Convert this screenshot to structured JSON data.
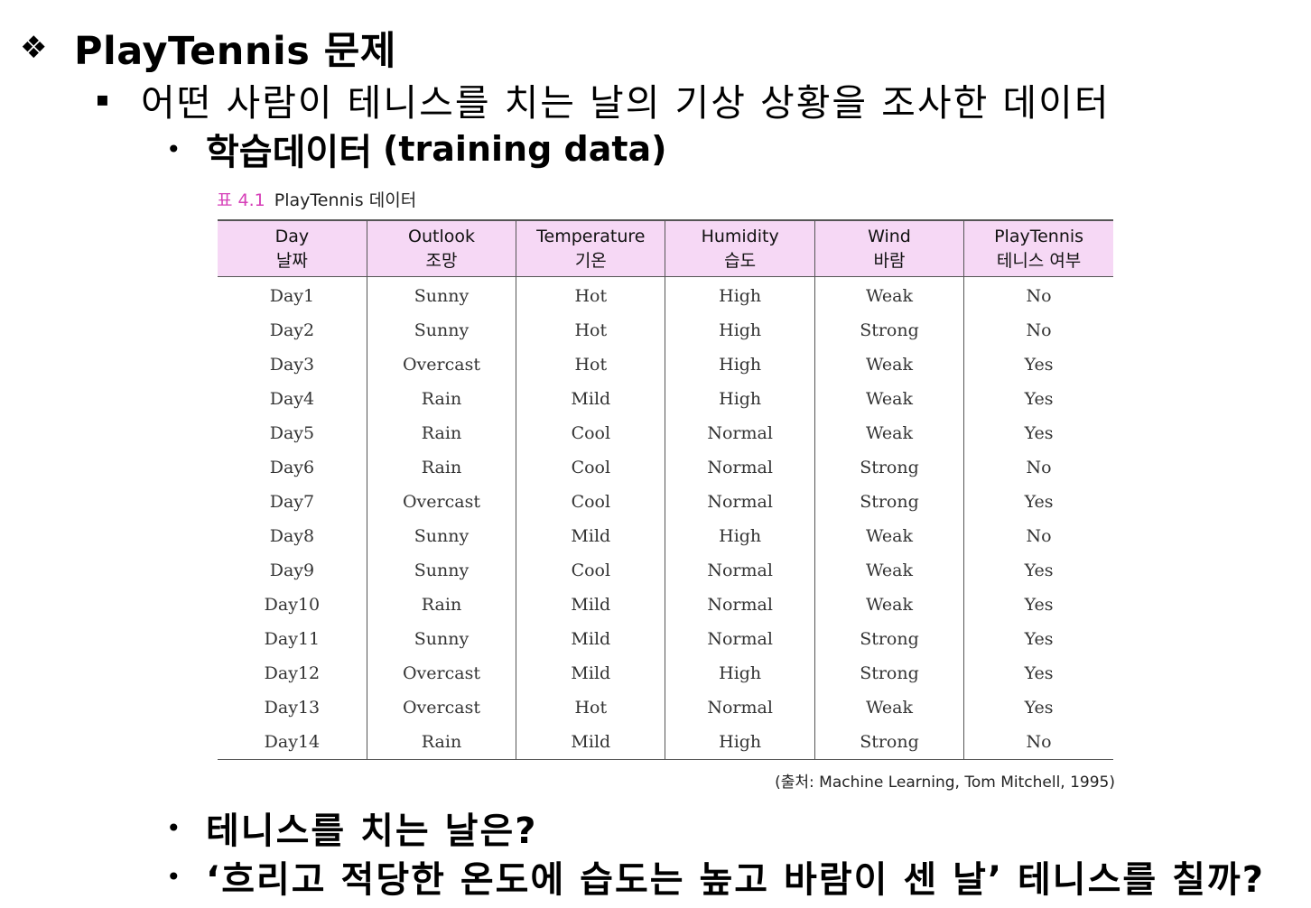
{
  "title": {
    "bullet": "❖",
    "text": "PlayTennis 문제"
  },
  "subtitle": {
    "bullet": "▪",
    "text": "어떤 사람이 테니스를 치는 날의 기상 상황을 조사한 데이터"
  },
  "training": {
    "bullet": "•",
    "text_ko": "학습데이터",
    "text_en": "(training data)"
  },
  "table_caption": {
    "number": "표 4.1",
    "title": "PlayTennis 데이터"
  },
  "table": {
    "headers": [
      {
        "en": "Day",
        "ko": "날짜"
      },
      {
        "en": "Outlook",
        "ko": "조망"
      },
      {
        "en": "Temperature",
        "ko": "기온"
      },
      {
        "en": "Humidity",
        "ko": "습도"
      },
      {
        "en": "Wind",
        "ko": "바람"
      },
      {
        "en": "PlayTennis",
        "ko": "테니스 여부"
      }
    ],
    "rows": [
      [
        "Day1",
        "Sunny",
        "Hot",
        "High",
        "Weak",
        "No"
      ],
      [
        "Day2",
        "Sunny",
        "Hot",
        "High",
        "Strong",
        "No"
      ],
      [
        "Day3",
        "Overcast",
        "Hot",
        "High",
        "Weak",
        "Yes"
      ],
      [
        "Day4",
        "Rain",
        "Mild",
        "High",
        "Weak",
        "Yes"
      ],
      [
        "Day5",
        "Rain",
        "Cool",
        "Normal",
        "Weak",
        "Yes"
      ],
      [
        "Day6",
        "Rain",
        "Cool",
        "Normal",
        "Strong",
        "No"
      ],
      [
        "Day7",
        "Overcast",
        "Cool",
        "Normal",
        "Strong",
        "Yes"
      ],
      [
        "Day8",
        "Sunny",
        "Mild",
        "High",
        "Weak",
        "No"
      ],
      [
        "Day9",
        "Sunny",
        "Cool",
        "Normal",
        "Weak",
        "Yes"
      ],
      [
        "Day10",
        "Rain",
        "Mild",
        "Normal",
        "Weak",
        "Yes"
      ],
      [
        "Day11",
        "Sunny",
        "Mild",
        "Normal",
        "Strong",
        "Yes"
      ],
      [
        "Day12",
        "Overcast",
        "Mild",
        "High",
        "Strong",
        "Yes"
      ],
      [
        "Day13",
        "Overcast",
        "Hot",
        "Normal",
        "Weak",
        "Yes"
      ],
      [
        "Day14",
        "Rain",
        "Mild",
        "High",
        "Strong",
        "No"
      ]
    ]
  },
  "source": "(출처: Machine Learning, Tom Mitchell, 1995)",
  "questions": [
    {
      "bullet": "•",
      "text": "테니스를 치는 날은?"
    },
    {
      "bullet": "•",
      "text": "‘흐리고 적당한 온도에 습도는 높고 바람이 센 날’ 테니스를 칠까?"
    }
  ],
  "colors": {
    "header_bg": "#f6d8f5",
    "caption_accent": "#d63fb8",
    "text": "#000000"
  }
}
